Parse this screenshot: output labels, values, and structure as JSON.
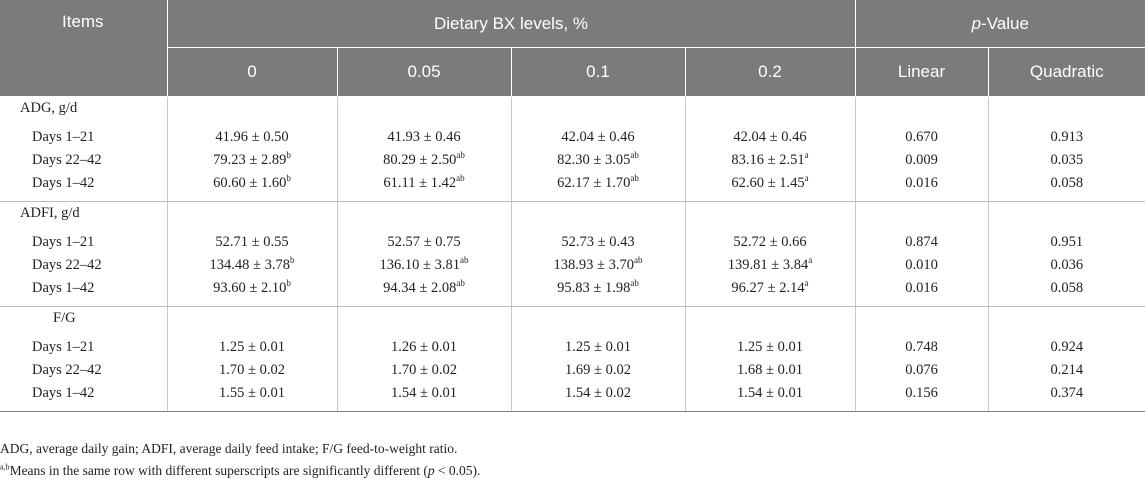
{
  "header": {
    "items": "Items",
    "dietary": "Dietary BX levels, %",
    "pvalue_italic": "p",
    "pvalue_rest": "-Value",
    "levels": [
      "0",
      "0.05",
      "0.1",
      "0.2"
    ],
    "linear": "Linear",
    "quadratic": "Quadratic"
  },
  "groups": [
    {
      "label": "ADG, g/d",
      "rows": [
        {
          "label": "Days 1–21",
          "vals": [
            "41.96 ± 0.50",
            "41.93 ± 0.46",
            "42.04 ± 0.46",
            "42.04 ± 0.46"
          ],
          "sups": [
            "",
            "",
            "",
            ""
          ],
          "linear": "0.670",
          "quadratic": "0.913"
        },
        {
          "label": "Days 22–42",
          "vals": [
            "79.23 ± 2.89",
            "80.29 ± 2.50",
            "82.30 ± 3.05",
            "83.16 ± 2.51"
          ],
          "sups": [
            "b",
            "ab",
            "ab",
            "a"
          ],
          "linear": "0.009",
          "quadratic": "0.035"
        },
        {
          "label": "Days 1–42",
          "vals": [
            "60.60 ± 1.60",
            "61.11 ± 1.42",
            "62.17 ± 1.70",
            "62.60 ± 1.45"
          ],
          "sups": [
            "b",
            "ab",
            "ab",
            "a"
          ],
          "linear": "0.016",
          "quadratic": "0.058"
        }
      ]
    },
    {
      "label": "ADFI, g/d",
      "rows": [
        {
          "label": "Days 1–21",
          "vals": [
            "52.71 ± 0.55",
            "52.57 ± 0.75",
            "52.73 ± 0.43",
            "52.72 ± 0.66"
          ],
          "sups": [
            "",
            "",
            "",
            ""
          ],
          "linear": "0.874",
          "quadratic": "0.951"
        },
        {
          "label": "Days 22–42",
          "vals": [
            "134.48 ± 3.78",
            "136.10 ± 3.81",
            "138.93 ± 3.70",
            "139.81 ± 3.84"
          ],
          "sups": [
            "b",
            "ab",
            "ab",
            "a"
          ],
          "linear": "0.010",
          "quadratic": "0.036"
        },
        {
          "label": "Days 1–42",
          "vals": [
            "93.60 ± 2.10",
            "94.34 ± 2.08",
            "95.83 ± 1.98",
            "96.27 ± 2.14"
          ],
          "sups": [
            "b",
            "ab",
            "ab",
            "a"
          ],
          "linear": "0.016",
          "quadratic": "0.058"
        }
      ]
    },
    {
      "label": "F/G",
      "rows": [
        {
          "label": "Days 1–21",
          "vals": [
            "1.25 ± 0.01",
            "1.26 ± 0.01",
            "1.25 ± 0.01",
            "1.25 ± 0.01"
          ],
          "sups": [
            "",
            "",
            "",
            ""
          ],
          "linear": "0.748",
          "quadratic": "0.924"
        },
        {
          "label": "Days 22–42",
          "vals": [
            "1.70 ± 0.02",
            "1.70 ± 0.02",
            "1.69 ± 0.02",
            "1.68 ± 0.01"
          ],
          "sups": [
            "",
            "",
            "",
            ""
          ],
          "linear": "0.076",
          "quadratic": "0.214"
        },
        {
          "label": "Days 1–42",
          "vals": [
            "1.55 ± 0.01",
            "1.54 ± 0.01",
            "1.54 ± 0.02",
            "1.54 ± 0.01"
          ],
          "sups": [
            "",
            "",
            "",
            ""
          ],
          "linear": "0.156",
          "quadratic": "0.374"
        }
      ]
    }
  ],
  "notes": {
    "abbrev": "ADG, average daily gain; ADFI, average daily feed intake; F/G feed-to-weight ratio.",
    "sig_sup": "a,b",
    "sig_pre": "Means in the same row with different superscripts are significantly different (",
    "sig_p": "p",
    "sig_post": " < 0.05)."
  }
}
